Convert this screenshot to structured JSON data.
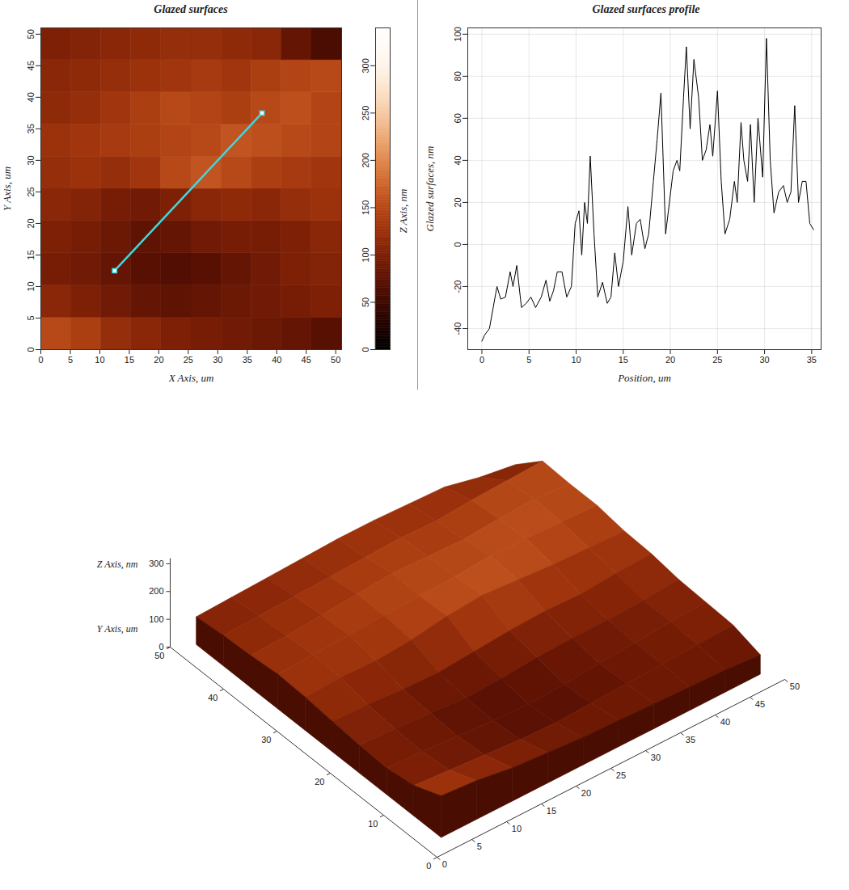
{
  "chart_data": [
    {
      "type": "heatmap",
      "title": "Glazed surfaces",
      "x_label": "X Axis, um",
      "y_label": "Y Axis, um",
      "xlim": [
        0,
        51
      ],
      "ylim": [
        0,
        51
      ],
      "xticks": [
        0,
        5,
        10,
        15,
        20,
        25,
        30,
        35,
        40,
        45,
        50
      ],
      "yticks": [
        0,
        5,
        10,
        15,
        20,
        25,
        30,
        35,
        40,
        45,
        50
      ],
      "x_bins": [
        0,
        5.1,
        10.2,
        15.3,
        20.4,
        25.5,
        30.6,
        35.7,
        40.8,
        45.9,
        51
      ],
      "y_bins": [
        0,
        5.1,
        10.2,
        15.3,
        20.4,
        25.5,
        30.6,
        35.7,
        40.8,
        45.9,
        51
      ],
      "cells": [
        [
          150,
          140,
          120,
          110,
          100,
          95,
          90,
          85,
          80,
          70
        ],
        [
          110,
          100,
          90,
          80,
          75,
          80,
          85,
          90,
          95,
          100
        ],
        [
          95,
          90,
          80,
          70,
          65,
          70,
          80,
          90,
          100,
          105
        ],
        [
          100,
          95,
          85,
          75,
          80,
          90,
          95,
          95,
          100,
          110
        ],
        [
          110,
          105,
          95,
          90,
          100,
          110,
          115,
          110,
          120,
          125
        ],
        [
          120,
          125,
          120,
          130,
          150,
          160,
          150,
          140,
          135,
          130
        ],
        [
          125,
          130,
          135,
          140,
          145,
          150,
          160,
          155,
          150,
          145
        ],
        [
          115,
          120,
          130,
          140,
          150,
          145,
          140,
          150,
          155,
          145
        ],
        [
          110,
          115,
          120,
          125,
          130,
          135,
          130,
          140,
          145,
          150
        ],
        [
          100,
          105,
          110,
          115,
          120,
          120,
          115,
          110,
          80,
          60
        ]
      ],
      "colorbar": {
        "label": "Z Axis, nm",
        "range": [
          0,
          340
        ],
        "ticks": [
          0,
          50,
          100,
          150,
          200,
          250,
          300
        ]
      },
      "profile_line": {
        "x": [
          12.5,
          37.5
        ],
        "y": [
          12.5,
          37.5
        ],
        "color": "#3fd8e0"
      }
    },
    {
      "type": "line",
      "title": "Glazed surfaces profile",
      "x_label": "Position, um",
      "y_label": "Glazed surfaces, nm",
      "color": "#000000",
      "grid": true,
      "xlim": [
        -1.5,
        36
      ],
      "ylim": [
        -50,
        103
      ],
      "xticks": [
        0,
        5,
        10,
        15,
        20,
        25,
        30,
        35
      ],
      "yticks": [
        -40,
        -20,
        0,
        20,
        40,
        60,
        80,
        100
      ],
      "x": [
        0,
        0.3,
        0.8,
        1.2,
        1.6,
        2.0,
        2.5,
        3.0,
        3.3,
        3.7,
        4.2,
        4.7,
        5.2,
        5.7,
        6.3,
        6.8,
        7.2,
        7.6,
        8.0,
        8.5,
        9.0,
        9.5,
        9.9,
        10.3,
        10.6,
        10.9,
        11.2,
        11.5,
        11.9,
        12.3,
        12.8,
        13.3,
        13.7,
        14.1,
        14.5,
        15.0,
        15.5,
        15.9,
        16.4,
        16.8,
        17.3,
        17.7,
        18.2,
        18.6,
        19.0,
        19.5,
        19.9,
        20.3,
        20.7,
        21.0,
        21.4,
        21.7,
        22.1,
        22.5,
        23.0,
        23.4,
        23.8,
        24.2,
        24.5,
        25.0,
        25.4,
        25.8,
        26.3,
        26.8,
        27.1,
        27.5,
        27.8,
        28.2,
        28.5,
        28.9,
        29.3,
        29.8,
        30.2,
        30.6,
        31.0,
        31.5,
        32.0,
        32.4,
        32.8,
        33.2,
        33.6,
        34.0,
        34.4,
        34.8,
        35.2
      ],
      "values": [
        -46,
        -43,
        -40,
        -30,
        -20,
        -26,
        -25,
        -13,
        -20,
        -10,
        -30,
        -28,
        -25,
        -30,
        -25,
        -17,
        -27,
        -22,
        -13,
        -13,
        -25,
        -20,
        10,
        16,
        -5,
        20,
        10,
        42,
        5,
        -25,
        -18,
        -28,
        -25,
        -4,
        -20,
        -8,
        18,
        -5,
        10,
        12,
        -2,
        5,
        30,
        50,
        72,
        5,
        20,
        35,
        40,
        35,
        70,
        94,
        55,
        88,
        70,
        40,
        45,
        57,
        42,
        73,
        30,
        5,
        12,
        30,
        20,
        58,
        40,
        30,
        57,
        20,
        60,
        32,
        98,
        40,
        15,
        25,
        28,
        20,
        25,
        66,
        20,
        30,
        30,
        10,
        7
      ]
    },
    {
      "type": "surface",
      "z_label": "Z Axis, nm",
      "y_label": "Y Axis, um",
      "xlim": [
        0,
        50
      ],
      "ylim": [
        0,
        50
      ],
      "zlim": [
        0,
        320
      ],
      "xticks": [
        0,
        5,
        10,
        15,
        20,
        25,
        30,
        35,
        40,
        45,
        50
      ],
      "yticks": [
        0,
        10,
        20,
        30,
        40,
        50
      ],
      "zticks": [
        0,
        100,
        200,
        300
      ],
      "x": [
        2.55,
        7.65,
        12.75,
        17.85,
        22.95,
        28.05,
        33.15,
        38.25,
        43.35,
        48.45
      ],
      "y": [
        2.55,
        7.65,
        12.75,
        17.85,
        22.95,
        28.05,
        33.15,
        38.25,
        43.35,
        48.45
      ],
      "z": [
        [
          150,
          140,
          120,
          110,
          100,
          95,
          90,
          85,
          80,
          70
        ],
        [
          110,
          100,
          90,
          80,
          75,
          80,
          85,
          90,
          95,
          100
        ],
        [
          95,
          90,
          80,
          70,
          65,
          70,
          80,
          90,
          100,
          105
        ],
        [
          100,
          95,
          85,
          75,
          80,
          90,
          95,
          95,
          100,
          110
        ],
        [
          110,
          105,
          95,
          90,
          100,
          110,
          115,
          110,
          120,
          125
        ],
        [
          120,
          125,
          120,
          130,
          150,
          160,
          150,
          140,
          135,
          130
        ],
        [
          125,
          130,
          135,
          140,
          145,
          150,
          160,
          155,
          150,
          145
        ],
        [
          115,
          120,
          130,
          140,
          150,
          145,
          140,
          150,
          155,
          145
        ],
        [
          110,
          115,
          120,
          125,
          130,
          135,
          130,
          140,
          145,
          150
        ],
        [
          100,
          105,
          110,
          115,
          120,
          120,
          115,
          110,
          80,
          60
        ]
      ]
    }
  ]
}
